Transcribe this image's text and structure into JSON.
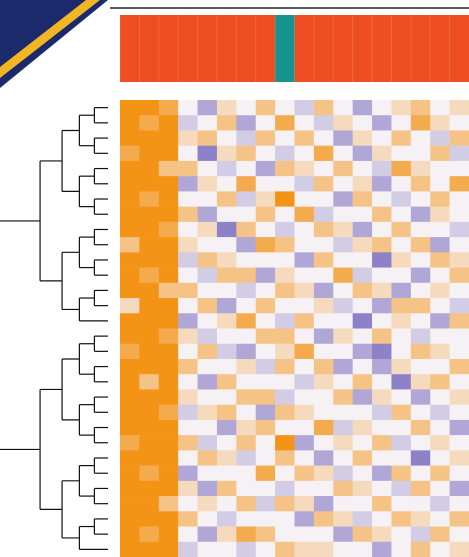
{
  "chart_data": {
    "type": "heatmap",
    "column_groups": [
      0,
      0,
      0,
      0,
      0,
      0,
      0,
      0,
      1,
      0,
      0,
      0,
      0,
      0,
      0,
      0,
      0,
      0
    ],
    "group_colors": [
      "#ee4e22",
      "#14938f"
    ],
    "colors": {
      "low": "#6a5cb8",
      "mid": "#f6f1f4",
      "high": "#f39416"
    },
    "zlim": [
      -2,
      2
    ],
    "values": [
      [
        2,
        2,
        1.5,
        0,
        -1,
        0.5,
        0,
        1,
        0,
        -0.5,
        1,
        0,
        -1,
        0,
        0.5,
        1,
        0,
        0.5
      ],
      [
        2,
        1.5,
        2,
        -0.5,
        0,
        1,
        -1,
        0,
        1.5,
        0,
        -0.5,
        0.5,
        0,
        -1,
        0,
        1.5,
        0.5,
        0
      ],
      [
        2,
        2,
        2,
        0.5,
        1,
        0,
        -0.5,
        1,
        0,
        1,
        0,
        -1,
        0.5,
        0,
        1,
        0,
        -0.5,
        1
      ],
      [
        1.5,
        2,
        2,
        0,
        -1.5,
        0.5,
        1,
        0,
        -0.5,
        0,
        1.5,
        0,
        -1,
        0.5,
        0,
        0,
        1,
        -0.5
      ],
      [
        2,
        2,
        1,
        1,
        0,
        -0.5,
        0,
        -1,
        1,
        0.5,
        0,
        1,
        0,
        -0.5,
        1.5,
        0.5,
        0,
        0
      ],
      [
        2,
        2,
        2,
        -1,
        0.5,
        0,
        1.5,
        0,
        0,
        -0.5,
        1,
        0,
        0.5,
        -1,
        0,
        1,
        0,
        1.5
      ],
      [
        2,
        1.5,
        2,
        0,
        0,
        1,
        -0.5,
        0.5,
        2,
        0,
        0,
        -1,
        1,
        0,
        -0.5,
        0,
        1,
        0
      ],
      [
        2,
        2,
        2,
        1,
        -1,
        0,
        0,
        1,
        0,
        1.5,
        -0.5,
        0,
        0,
        1,
        0,
        -1,
        0.5,
        0
      ],
      [
        2,
        2,
        1.5,
        0,
        0.5,
        -1.5,
        1,
        0,
        -0.5,
        0,
        1,
        0.5,
        -1,
        0,
        1,
        0,
        0,
        -0.5
      ],
      [
        1,
        2,
        2,
        0.5,
        0,
        0,
        -1,
        1.5,
        1,
        0,
        0,
        -0.5,
        0.5,
        1,
        0,
        1,
        -1,
        0
      ],
      [
        2,
        2,
        2,
        -0.5,
        1,
        0.5,
        0,
        0,
        0,
        -1,
        1,
        0,
        0,
        -1.5,
        0.5,
        0,
        1,
        0.5
      ],
      [
        2,
        1.5,
        2,
        0,
        -0.5,
        1,
        1,
        -1,
        0.5,
        0,
        0,
        1.5,
        -0.5,
        0,
        0,
        -1,
        0,
        1
      ],
      [
        2,
        2,
        1,
        1,
        0,
        0,
        -0.5,
        0,
        1,
        0.5,
        -1,
        0,
        1,
        0.5,
        -1,
        0,
        0.5,
        0
      ],
      [
        0.5,
        2,
        2,
        0,
        1,
        -1,
        0,
        1,
        0,
        0,
        0.5,
        -0.5,
        0,
        -1,
        1,
        1,
        0,
        -0.5
      ],
      [
        2,
        2,
        2,
        -1,
        0,
        0.5,
        1.5,
        0,
        -0.5,
        1,
        0,
        0,
        -1.5,
        0,
        0.5,
        0,
        -1,
        1
      ],
      [
        2,
        2,
        1.5,
        0.5,
        -0.5,
        0,
        0,
        1,
        1,
        0,
        -1,
        0.5,
        0,
        1,
        0,
        -0.5,
        0,
        0
      ],
      [
        1.5,
        2,
        2,
        0,
        1,
        -0.5,
        -1,
        0,
        0.5,
        1.5,
        0,
        0,
        -1,
        -1.5,
        0,
        1,
        0.5,
        0
      ],
      [
        2,
        2,
        2,
        1,
        0,
        0,
        0.5,
        -0.5,
        1,
        0,
        1,
        -1,
        0,
        -1,
        0.5,
        0,
        0,
        1
      ],
      [
        2,
        1,
        2,
        0,
        -1,
        1,
        0,
        0,
        0,
        -0.5,
        0.5,
        0,
        1,
        0,
        -1.5,
        0.5,
        1,
        0
      ],
      [
        2,
        2,
        2,
        0.5,
        0,
        0,
        1,
        1,
        -0.5,
        0,
        0,
        1,
        -1,
        0.5,
        0,
        -1,
        0,
        0.5
      ],
      [
        2,
        2,
        1.5,
        -0.5,
        0.5,
        1,
        0,
        -1,
        1,
        0.5,
        0,
        0,
        0,
        -0.5,
        1,
        0,
        -0.5,
        0
      ],
      [
        2,
        2,
        2,
        0,
        0,
        -1,
        0.5,
        1,
        0,
        0,
        1.5,
        -0.5,
        0.5,
        0,
        0,
        1,
        0,
        -1
      ],
      [
        1.5,
        2,
        2,
        1,
        -0.5,
        0,
        1,
        0,
        2,
        -1,
        0,
        0.5,
        0,
        1,
        -0.5,
        0,
        0.5,
        0
      ],
      [
        2,
        2,
        2,
        0,
        1,
        0.5,
        -0.5,
        0,
        1,
        0,
        -1,
        0,
        1,
        0,
        0,
        -1.5,
        0,
        0.5
      ],
      [
        2,
        1.5,
        2,
        -1,
        0,
        0,
        0,
        1.5,
        0,
        1,
        0.5,
        -0.5,
        0,
        -1,
        1,
        0,
        1,
        0
      ],
      [
        2,
        2,
        2,
        0.5,
        -1,
        1,
        0,
        0,
        -0.5,
        0,
        0,
        1,
        0.5,
        0,
        -0.5,
        1,
        0,
        -1
      ],
      [
        2,
        2,
        1,
        0,
        0.5,
        0,
        1,
        -0.5,
        1,
        0.5,
        -1,
        0,
        0,
        1,
        0,
        0,
        -0.5,
        0
      ],
      [
        2,
        2,
        2,
        1,
        0,
        -0.5,
        0,
        0,
        0,
        -1,
        1,
        0.5,
        -0.5,
        0,
        1,
        0.5,
        0,
        1
      ],
      [
        2,
        1.5,
        2,
        0,
        -1,
        0.5,
        1.5,
        1,
        0,
        0,
        0,
        -1,
        1,
        0.5,
        0,
        -0.5,
        1,
        0
      ],
      [
        2,
        2,
        2,
        -0.5,
        0,
        0,
        -0.5,
        0,
        1,
        0.5,
        0.5,
        0,
        0,
        -1,
        0,
        1,
        0,
        0.5
      ]
    ]
  }
}
